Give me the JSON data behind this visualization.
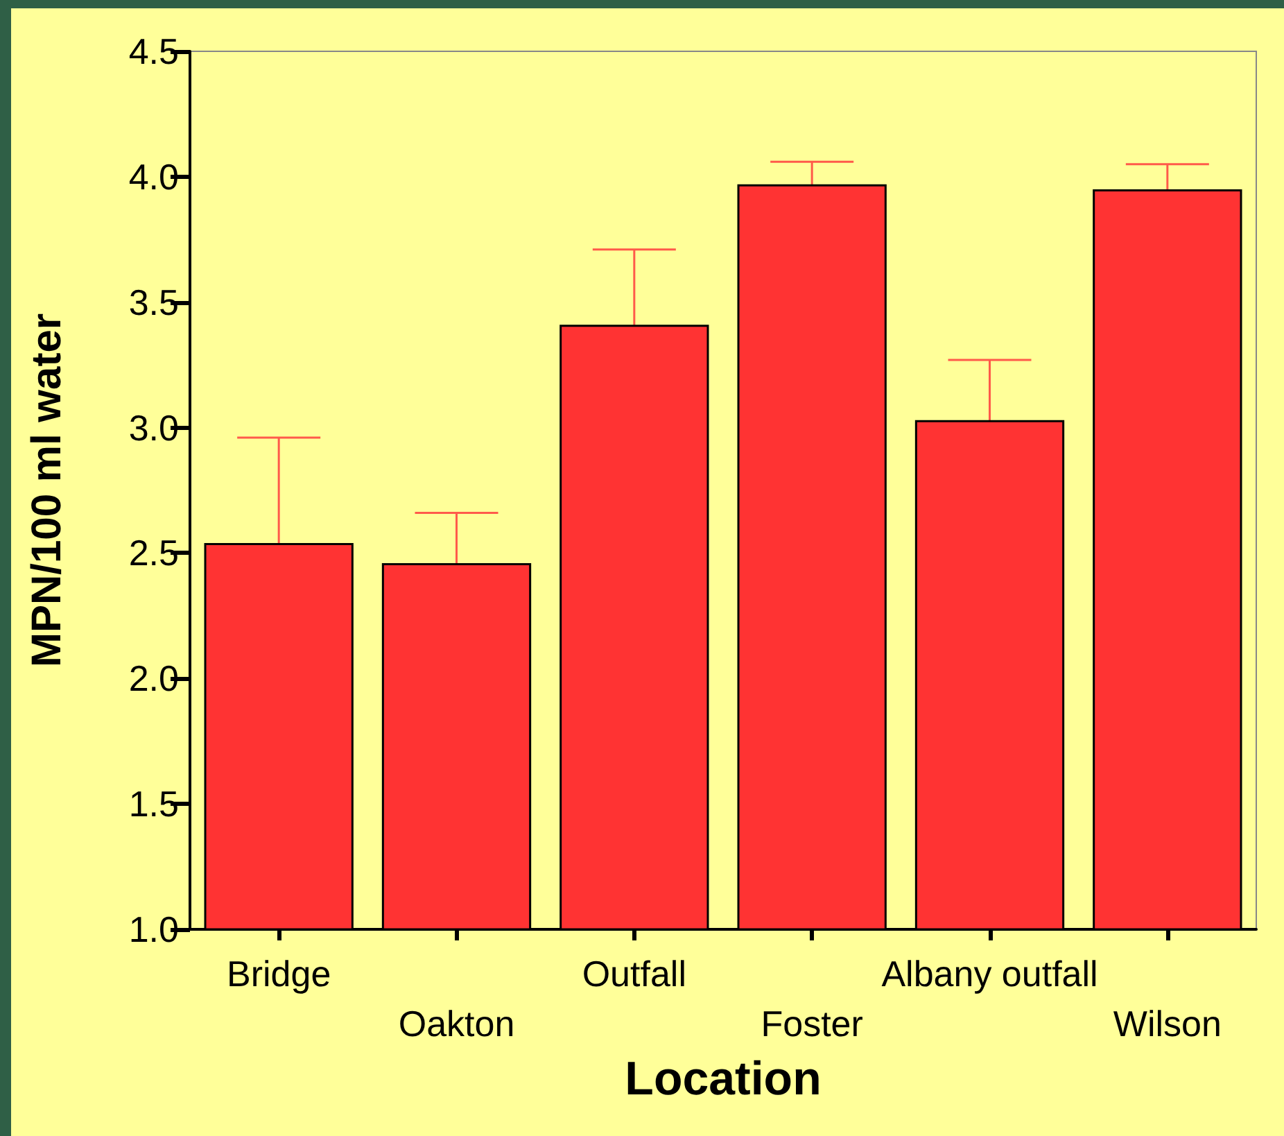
{
  "chart_data": {
    "type": "bar",
    "xlabel": "Location",
    "ylabel": "MPN/100 ml water",
    "categories": [
      "Bridge",
      "Oakton",
      "Outfall",
      "Foster",
      "Albany outfall",
      "Wilson"
    ],
    "values": [
      2.54,
      2.46,
      3.41,
      3.97,
      3.03,
      3.95
    ],
    "errors": [
      0.42,
      0.2,
      0.3,
      0.09,
      0.24,
      0.1
    ],
    "color": "#ff3333",
    "ylim": [
      1,
      4.5
    ],
    "yticks": [
      {
        "value": 1,
        "label": "1.0"
      },
      {
        "value": 1.5,
        "label": "1.5"
      },
      {
        "value": 2,
        "label": "2.0"
      },
      {
        "value": 2.5,
        "label": "2.5"
      },
      {
        "value": 3,
        "label": "3.0"
      },
      {
        "value": 3.5,
        "label": "3.5"
      },
      {
        "value": 4,
        "label": "4.0"
      },
      {
        "value": 4.5,
        "label": "4.5"
      }
    ],
    "grid": false
  }
}
